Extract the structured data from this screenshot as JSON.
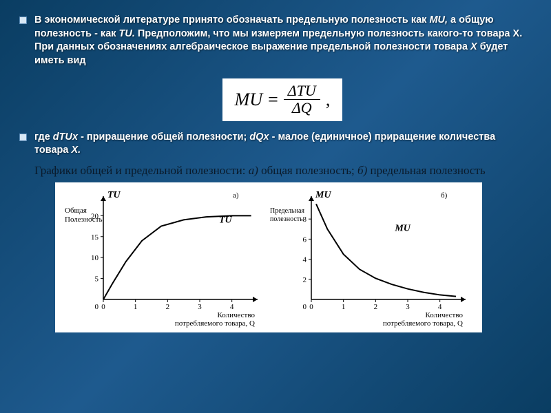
{
  "bullet1": {
    "text_parts": {
      "p1": "В экономической литературе принято обозначать предельную полезность как ",
      "mu": "MU,",
      "p2": " а общую полезность - как ",
      "tu": "TU.",
      "p3": " Предположим, что мы измеряем предельную полезность какого-то товара X. При данных обозначениях алгебраическое выражение предельной полезности товара ",
      "x": "X",
      "p4": " будет иметь вид"
    }
  },
  "formula": {
    "lhs": "MU",
    "eq": "=",
    "num": "ΔTU",
    "den": "ΔQ",
    "tail": ","
  },
  "bullet2": {
    "text_parts": {
      "p1": "где ",
      "d1": "dTUx",
      "p2": " - приращение общей полезности; ",
      "d2": "dQx",
      "p3": " - малое (единичное) приращение количества товара ",
      "x": "X."
    }
  },
  "caption": {
    "p1": "Графики общей и предельной полезности: ",
    "a": "а)",
    "p2": " общая полезность; ",
    "b": "б)",
    "p3": " предельная полезность"
  },
  "chart_a": {
    "type": "line",
    "panel_label": "а)",
    "y_axis_top": "TU",
    "y_axis_label": "Общая Полезность",
    "curve_label": "TU",
    "x_axis_label_l1": "Количество",
    "x_axis_label_l2": "потребляемого товара, Q",
    "x_ticks": [
      0,
      1,
      2,
      3,
      4
    ],
    "y_ticks": [
      0,
      5,
      10,
      15,
      20
    ],
    "xlim": [
      0,
      4.8
    ],
    "ylim": [
      0,
      24
    ],
    "points": [
      [
        0,
        0
      ],
      [
        0.3,
        4
      ],
      [
        0.7,
        9
      ],
      [
        1.2,
        14
      ],
      [
        1.8,
        17.5
      ],
      [
        2.5,
        19
      ],
      [
        3.2,
        19.7
      ],
      [
        4.0,
        20
      ],
      [
        4.6,
        20
      ]
    ],
    "line_color": "#000000",
    "line_width": 2,
    "background_color": "#ffffff"
  },
  "chart_b": {
    "type": "line",
    "panel_label": "б)",
    "y_axis_top": "MU",
    "y_axis_label": "Предельная полезность",
    "curve_label": "MU",
    "x_axis_label_l1": "Количество",
    "x_axis_label_l2": "потребляемого товара, Q",
    "x_ticks": [
      0,
      1,
      2,
      3,
      4
    ],
    "y_ticks": [
      0,
      2,
      4,
      6,
      8
    ],
    "xlim": [
      0,
      4.8
    ],
    "ylim": [
      0,
      10
    ],
    "points": [
      [
        0.15,
        9.5
      ],
      [
        0.5,
        7
      ],
      [
        1.0,
        4.5
      ],
      [
        1.5,
        3.0
      ],
      [
        2.0,
        2.1
      ],
      [
        2.5,
        1.5
      ],
      [
        3.0,
        1.05
      ],
      [
        3.5,
        0.7
      ],
      [
        4.0,
        0.45
      ],
      [
        4.5,
        0.3
      ]
    ],
    "line_color": "#000000",
    "line_width": 2,
    "background_color": "#ffffff"
  }
}
